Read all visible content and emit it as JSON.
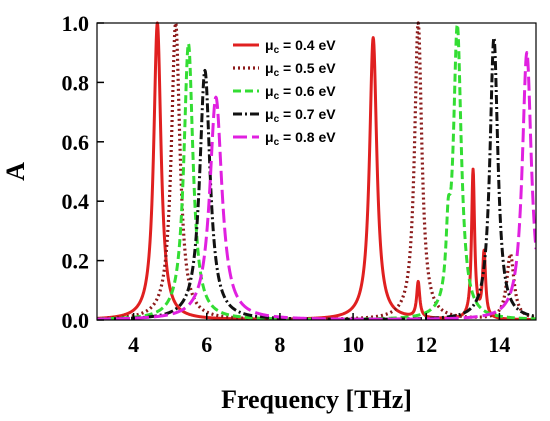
{
  "chart_data": {
    "type": "line",
    "title": "",
    "xlabel": "Frequency [THz]",
    "ylabel": "A",
    "xlim": [
      3,
      15
    ],
    "ylim": [
      0,
      1.0
    ],
    "xticks": [
      4,
      6,
      8,
      10,
      12,
      14
    ],
    "xtick_labels": [
      "4",
      "6",
      "8",
      "10",
      "12",
      "14"
    ],
    "yticks": [
      0,
      0.2,
      0.4,
      0.6,
      0.8,
      1.0
    ],
    "ytick_labels": [
      "0.0",
      "0.2",
      "0.4",
      "0.6",
      "0.8",
      "1.0"
    ],
    "grid": false,
    "legend_position": "top-right",
    "series": [
      {
        "name": "μ_c = 0.4 eV",
        "legend_label": {
          "mu": "μ",
          "sub": "c",
          "rest": " = 0.4 eV"
        },
        "color": "#e02020",
        "dash": "solid",
        "peaks": [
          [
            4.65,
            1.0,
            0.12
          ],
          [
            10.55,
            0.95,
            0.12
          ],
          [
            11.78,
            0.12,
            0.05
          ],
          [
            13.28,
            0.5,
            0.05
          ],
          [
            13.58,
            0.22,
            0.05
          ]
        ]
      },
      {
        "name": "μ_c = 0.5 eV",
        "legend_label": {
          "mu": "μ",
          "sub": "c",
          "rest": " = 0.5 eV"
        },
        "color": "#8b1a1a",
        "dash": "dotted",
        "peaks": [
          [
            5.15,
            1.0,
            0.14
          ],
          [
            11.78,
            1.0,
            0.12
          ],
          [
            14.3,
            0.22,
            0.12
          ]
        ]
      },
      {
        "name": "μ_c = 0.6 eV",
        "legend_label": {
          "mu": "μ",
          "sub": "c",
          "rest": " = 0.6 eV"
        },
        "color": "#33dd33",
        "dash": "dashed",
        "peaks": [
          [
            5.5,
            0.93,
            0.15
          ],
          [
            12.6,
            0.2,
            0.07
          ],
          [
            12.85,
            0.98,
            0.13
          ]
        ]
      },
      {
        "name": "μ_c = 0.7 eV",
        "legend_label": {
          "mu": "μ",
          "sub": "c",
          "rest": " = 0.7 eV"
        },
        "color": "#111111",
        "dash": "dashdot",
        "peaks": [
          [
            5.95,
            0.84,
            0.17
          ],
          [
            13.85,
            0.95,
            0.13
          ]
        ]
      },
      {
        "name": "μ_c = 0.8 eV",
        "legend_label": {
          "mu": "μ",
          "sub": "c",
          "rest": " = 0.8 eV"
        },
        "color": "#e020e0",
        "dash": "longdash",
        "peaks": [
          [
            6.25,
            0.75,
            0.2
          ],
          [
            14.75,
            0.9,
            0.15
          ]
        ]
      }
    ]
  }
}
